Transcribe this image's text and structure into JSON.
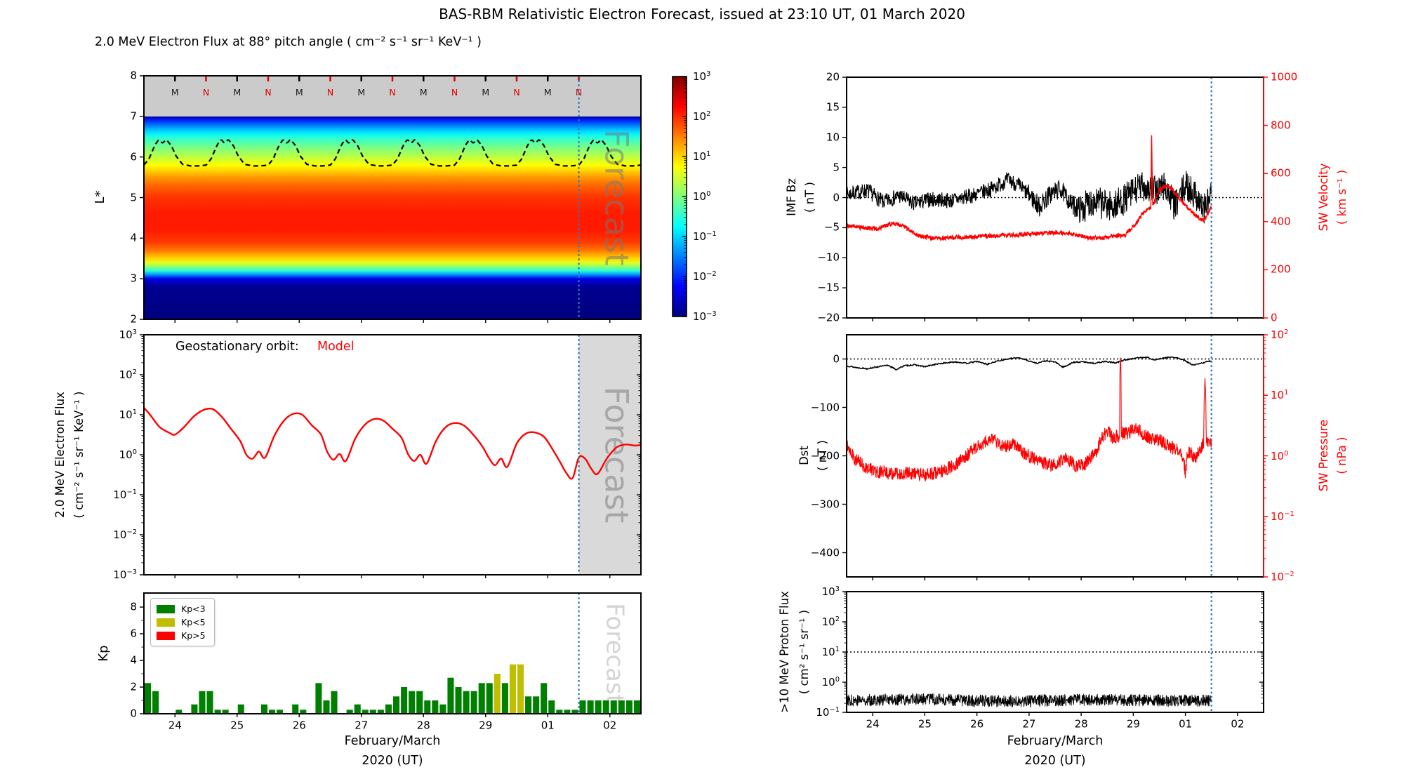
{
  "title": "BAS-RBM Relativistic Electron Forecast, issued at 23:10 UT, 01 March 2020",
  "labels": {
    "heatmap_title": "2.0 MeV Electron Flux at 88° pitch angle ( cm⁻² s⁻¹ sr⁻¹ KeV⁻¹ )",
    "lstar": "L*",
    "gf_ylabel1": "2.0 MeV Electron Flux",
    "gf_ylabel2": "( cm⁻² s⁻¹ sr⁻¹ KeV⁻¹ )",
    "kp_ylabel": "Kp",
    "imf_ylabel1": "IMF Bz",
    "imf_ylabel2": "( nT )",
    "swv_ylabel1": "SW Velocity",
    "swv_ylabel2": "( km s⁻¹ )",
    "dst_ylabel1": "Dst",
    "dst_ylabel2": "( nT )",
    "swp_ylabel1": "SW Pressure",
    "swp_ylabel2": "( nPa )",
    "proton_ylabel1": ">10 MeV Proton Flux",
    "proton_ylabel2": "( cm² s⁻¹ sr⁻¹ )",
    "xlabel_line1": "February/March",
    "xlabel_line2": "2020 (UT)",
    "geo_annotation": "Geostationary orbit:",
    "geo_annotation_model": "Model",
    "watermark": "Forecast",
    "xticks": [
      "24",
      "25",
      "26",
      "27",
      "28",
      "29",
      "01",
      "02"
    ]
  },
  "colors": {
    "red": "#ff0000",
    "forecast_line": "#3579b1",
    "forecast_shade": "#d9d9d9",
    "heatmap_gray_band": "#cbcbcb",
    "kp_green": "#008000",
    "kp_yellow": "#bfbf00",
    "kp_red": "#ff0000"
  },
  "chart_data": [
    {
      "id": "electron_flux_heatmap",
      "type": "heatmap",
      "title": "2.0 MeV Electron Flux at 88° pitch angle ( cm⁻² s⁻¹ sr⁻¹ KeV⁻¹ )",
      "ylabel": "L*",
      "yticks": [
        8,
        7,
        6,
        5,
        4,
        3,
        2
      ],
      "y_range": [
        2,
        8
      ],
      "x_range_days": 8,
      "forecast_start_day": 7,
      "gray_band_lstar": [
        7,
        8
      ],
      "colormap": "jet",
      "colorbar_exponents": [
        3,
        2,
        1,
        0,
        -1,
        -2,
        -3
      ],
      "flux_profile_log10_vs_lstar": [
        [
          7.0,
          -2.8
        ],
        [
          6.9,
          -2.0
        ],
        [
          6.7,
          -1.2
        ],
        [
          6.5,
          -0.55
        ],
        [
          6.3,
          -0.15
        ],
        [
          6.1,
          0.2
        ],
        [
          5.9,
          0.55
        ],
        [
          5.7,
          0.95
        ],
        [
          5.5,
          1.35
        ],
        [
          5.3,
          1.65
        ],
        [
          5.0,
          1.95
        ],
        [
          4.6,
          2.1
        ],
        [
          4.2,
          2.1
        ],
        [
          3.9,
          1.9
        ],
        [
          3.7,
          1.55
        ],
        [
          3.5,
          1.0
        ],
        [
          3.35,
          0.4
        ],
        [
          3.2,
          -0.5
        ],
        [
          3.1,
          -1.4
        ],
        [
          3.0,
          -2.4
        ],
        [
          2.8,
          -2.9
        ],
        [
          2.0,
          -3.0
        ]
      ],
      "geo_orbit_lstar_daily_cycle": [
        [
          0,
          5.8
        ],
        [
          0.08,
          5.95
        ],
        [
          0.18,
          6.3
        ],
        [
          0.24,
          6.43
        ],
        [
          0.3,
          6.34
        ],
        [
          0.36,
          6.43
        ],
        [
          0.44,
          6.28
        ],
        [
          0.52,
          6.02
        ],
        [
          0.62,
          5.82
        ],
        [
          0.75,
          5.78
        ],
        [
          0.88,
          5.78
        ],
        [
          1,
          5.8
        ]
      ],
      "midnight_noon_markers": [
        {
          "day": 0.5,
          "label": "M"
        },
        {
          "day": 1.0,
          "label": "N"
        },
        {
          "day": 1.5,
          "label": "M"
        },
        {
          "day": 2.0,
          "label": "N"
        },
        {
          "day": 2.5,
          "label": "M"
        },
        {
          "day": 3.0,
          "label": "N"
        },
        {
          "day": 3.5,
          "label": "M"
        },
        {
          "day": 4.0,
          "label": "N"
        },
        {
          "day": 4.5,
          "label": "M"
        },
        {
          "day": 5.0,
          "label": "N"
        },
        {
          "day": 5.5,
          "label": "M"
        },
        {
          "day": 6.0,
          "label": "N"
        },
        {
          "day": 6.5,
          "label": "M"
        },
        {
          "day": 7.0,
          "label": "N"
        }
      ]
    },
    {
      "id": "geostationary_flux",
      "type": "line",
      "annotation": "Geostationary orbit:",
      "series_name": "Model",
      "ylog_exponents": [
        3,
        2,
        1,
        0,
        -1,
        -2,
        -3
      ],
      "forecast_start_day": 7,
      "points_day_flux": [
        [
          0,
          15
        ],
        [
          0.1,
          10
        ],
        [
          0.25,
          5
        ],
        [
          0.4,
          3.6
        ],
        [
          0.5,
          3.2
        ],
        [
          0.65,
          5
        ],
        [
          0.8,
          9
        ],
        [
          0.95,
          13
        ],
        [
          1.1,
          14
        ],
        [
          1.25,
          9
        ],
        [
          1.4,
          4.5
        ],
        [
          1.55,
          2.2
        ],
        [
          1.65,
          1.0
        ],
        [
          1.75,
          0.8
        ],
        [
          1.85,
          1.2
        ],
        [
          1.95,
          0.85
        ],
        [
          2.1,
          3
        ],
        [
          2.25,
          7
        ],
        [
          2.4,
          10.5
        ],
        [
          2.55,
          10
        ],
        [
          2.7,
          5.5
        ],
        [
          2.85,
          3.2
        ],
        [
          2.95,
          1.2
        ],
        [
          3.05,
          0.75
        ],
        [
          3.15,
          1.05
        ],
        [
          3.25,
          0.7
        ],
        [
          3.4,
          2.5
        ],
        [
          3.55,
          5.5
        ],
        [
          3.7,
          7.8
        ],
        [
          3.85,
          7.2
        ],
        [
          4.0,
          4.5
        ],
        [
          4.15,
          2.6
        ],
        [
          4.25,
          1.05
        ],
        [
          4.35,
          0.7
        ],
        [
          4.45,
          1.0
        ],
        [
          4.55,
          0.6
        ],
        [
          4.7,
          2.2
        ],
        [
          4.85,
          4.8
        ],
        [
          5.0,
          6.2
        ],
        [
          5.15,
          5.4
        ],
        [
          5.3,
          3.2
        ],
        [
          5.45,
          1.6
        ],
        [
          5.55,
          0.85
        ],
        [
          5.65,
          0.55
        ],
        [
          5.75,
          0.8
        ],
        [
          5.85,
          0.5
        ],
        [
          6.0,
          1.9
        ],
        [
          6.15,
          3.4
        ],
        [
          6.3,
          3.6
        ],
        [
          6.45,
          2.7
        ],
        [
          6.6,
          1.2
        ],
        [
          6.7,
          0.65
        ],
        [
          6.8,
          0.35
        ],
        [
          6.9,
          0.26
        ],
        [
          7.0,
          0.85
        ],
        [
          7.1,
          0.8
        ],
        [
          7.2,
          0.45
        ],
        [
          7.3,
          0.33
        ],
        [
          7.45,
          0.8
        ],
        [
          7.6,
          1.5
        ],
        [
          7.75,
          1.8
        ],
        [
          7.9,
          1.7
        ],
        [
          8,
          1.75
        ]
      ]
    },
    {
      "id": "kp_index",
      "type": "bar",
      "ylabel": "Kp",
      "yticks": [
        0,
        2,
        4,
        6,
        8
      ],
      "bin_hours": 3,
      "forecast_start_day": 7,
      "legend": [
        {
          "label": "Kp<3",
          "color": "#008000"
        },
        {
          "label": "Kp<5",
          "color": "#bfbf00"
        },
        {
          "label": "Kp>5",
          "color": "#ff0000"
        }
      ],
      "values": [
        2.3,
        1.7,
        0,
        0,
        0.3,
        0,
        0.7,
        1.7,
        1.7,
        0.3,
        0.3,
        0,
        0.7,
        0,
        0,
        0.7,
        0.3,
        0.3,
        0,
        0.7,
        0.3,
        0,
        2.3,
        1.0,
        1.7,
        0,
        0.3,
        0.7,
        0.3,
        0.3,
        0.3,
        0.7,
        1.3,
        2.0,
        1.7,
        1.7,
        1.0,
        1.0,
        0.7,
        2.7,
        2.0,
        1.7,
        1.7,
        2.3,
        2.3,
        3.0,
        2.3,
        3.7,
        3.7,
        1.3,
        1.3,
        2.3,
        1.0,
        0.3,
        0.3,
        0.3,
        1.0,
        1.0,
        1.0,
        1.0,
        1.0,
        1.0,
        1.0,
        1.0
      ]
    },
    {
      "id": "imf_sw_velocity",
      "type": "line",
      "left_axis": {
        "label": "IMF Bz ( nT )",
        "range": [
          -20,
          20
        ],
        "ticks": [
          20,
          15,
          10,
          5,
          0,
          -5,
          -10,
          -15,
          -20
        ]
      },
      "right_axis": {
        "label": "SW Velocity ( km s⁻¹ )",
        "range": [
          0,
          1000
        ],
        "ticks": [
          1000,
          800,
          600,
          400,
          200,
          0
        ]
      },
      "zero_line_bz": 0,
      "data_end_day": 7,
      "imf_bz_keypoints": [
        [
          0,
          0.5
        ],
        [
          0.4,
          1.2
        ],
        [
          0.7,
          -0.8
        ],
        [
          1.0,
          0.3
        ],
        [
          1.3,
          -1
        ],
        [
          1.6,
          -0.3
        ],
        [
          2.0,
          -0.5
        ],
        [
          2.4,
          0.3
        ],
        [
          2.8,
          1.5
        ],
        [
          3.1,
          3
        ],
        [
          3.3,
          2
        ],
        [
          3.5,
          0.5
        ],
        [
          3.7,
          -1.5
        ],
        [
          3.9,
          0.5
        ],
        [
          4.1,
          1.5
        ],
        [
          4.3,
          -1
        ],
        [
          4.5,
          -2
        ],
        [
          4.7,
          -0.5
        ],
        [
          4.9,
          -1
        ],
        [
          5.1,
          -1.5
        ],
        [
          5.3,
          -0.5
        ],
        [
          5.5,
          1
        ],
        [
          5.7,
          2
        ],
        [
          5.9,
          1
        ],
        [
          6.1,
          2
        ],
        [
          6.3,
          -1.5
        ],
        [
          6.5,
          2
        ],
        [
          6.7,
          0.5
        ],
        [
          6.85,
          -2
        ],
        [
          7.0,
          0.5
        ]
      ],
      "imf_bz_noise_amp": [
        [
          0,
          1.3
        ],
        [
          3.4,
          1.3
        ],
        [
          3.6,
          1.8
        ],
        [
          4.3,
          1.5
        ],
        [
          4.55,
          2.6
        ],
        [
          7,
          2.6
        ]
      ],
      "sw_velocity_keypoints": [
        [
          0,
          385
        ],
        [
          0.3,
          375
        ],
        [
          0.6,
          370
        ],
        [
          0.9,
          395
        ],
        [
          1.1,
          380
        ],
        [
          1.4,
          340
        ],
        [
          1.7,
          330
        ],
        [
          2.2,
          335
        ],
        [
          2.7,
          340
        ],
        [
          3.2,
          345
        ],
        [
          3.7,
          350
        ],
        [
          4.0,
          355
        ],
        [
          4.3,
          350
        ],
        [
          4.6,
          335
        ],
        [
          4.9,
          330
        ],
        [
          5.1,
          340
        ],
        [
          5.35,
          345
        ],
        [
          5.55,
          390
        ],
        [
          5.7,
          440
        ],
        [
          5.84,
          460
        ],
        [
          5.85,
          790
        ],
        [
          5.87,
          470
        ],
        [
          6.0,
          530
        ],
        [
          6.15,
          555
        ],
        [
          6.3,
          520
        ],
        [
          6.45,
          480
        ],
        [
          6.6,
          445
        ],
        [
          6.75,
          415
        ],
        [
          6.85,
          405
        ],
        [
          6.95,
          440
        ],
        [
          7.0,
          465
        ]
      ],
      "sw_velocity_noise_amp": 9
    },
    {
      "id": "dst_sw_pressure",
      "type": "line",
      "left_axis": {
        "label": "Dst ( nT )",
        "range": [
          -450,
          50
        ],
        "ticks": [
          0,
          -100,
          -200,
          -300,
          -400
        ]
      },
      "right_axis": {
        "label": "SW Pressure ( nPa )",
        "log_exponents": [
          2,
          1,
          0,
          -1,
          -2
        ]
      },
      "zero_line_dst": 0,
      "data_end_day": 7,
      "dst_keypoints": [
        [
          0,
          -14
        ],
        [
          0.2,
          -18
        ],
        [
          0.4,
          -20
        ],
        [
          0.6,
          -16
        ],
        [
          0.8,
          -13
        ],
        [
          0.95,
          -22
        ],
        [
          1.1,
          -14
        ],
        [
          1.3,
          -12
        ],
        [
          1.5,
          -16
        ],
        [
          1.7,
          -11
        ],
        [
          1.9,
          -8
        ],
        [
          2.1,
          -6
        ],
        [
          2.3,
          -9
        ],
        [
          2.5,
          -5
        ],
        [
          2.7,
          -11
        ],
        [
          2.9,
          -4
        ],
        [
          3.1,
          0
        ],
        [
          3.3,
          3
        ],
        [
          3.5,
          -4
        ],
        [
          3.65,
          -9
        ],
        [
          3.8,
          -4
        ],
        [
          4.0,
          -6
        ],
        [
          4.15,
          -17
        ],
        [
          4.35,
          -7
        ],
        [
          4.55,
          -6
        ],
        [
          4.75,
          -9
        ],
        [
          4.95,
          -5
        ],
        [
          5.15,
          -8
        ],
        [
          5.35,
          -2
        ],
        [
          5.55,
          2
        ],
        [
          5.75,
          4
        ],
        [
          5.9,
          -2
        ],
        [
          6.05,
          1
        ],
        [
          6.2,
          4
        ],
        [
          6.35,
          2
        ],
        [
          6.5,
          -4
        ],
        [
          6.65,
          -13
        ],
        [
          6.8,
          -9
        ],
        [
          6.9,
          -6
        ],
        [
          7.0,
          -4
        ]
      ],
      "dst_noise_amp": 1.2,
      "pressure_keypoints_npa": [
        [
          0,
          1.6
        ],
        [
          0.15,
          0.9
        ],
        [
          0.35,
          0.65
        ],
        [
          0.6,
          0.55
        ],
        [
          0.9,
          0.5
        ],
        [
          1.2,
          0.52
        ],
        [
          1.5,
          0.48
        ],
        [
          1.8,
          0.55
        ],
        [
          2.1,
          0.7
        ],
        [
          2.35,
          1.1
        ],
        [
          2.6,
          1.6
        ],
        [
          2.8,
          1.9
        ],
        [
          3.0,
          1.4
        ],
        [
          3.2,
          1.6
        ],
        [
          3.4,
          1.1
        ],
        [
          3.6,
          0.9
        ],
        [
          3.8,
          0.75
        ],
        [
          4.0,
          0.7
        ],
        [
          4.2,
          0.95
        ],
        [
          4.4,
          0.65
        ],
        [
          4.6,
          0.75
        ],
        [
          4.8,
          1.2
        ],
        [
          5.0,
          2.6
        ],
        [
          5.1,
          2.0
        ],
        [
          5.24,
          2.2
        ],
        [
          5.25,
          50
        ],
        [
          5.27,
          2.4
        ],
        [
          5.4,
          2.3
        ],
        [
          5.55,
          3.0
        ],
        [
          5.7,
          2.2
        ],
        [
          5.85,
          1.9
        ],
        [
          6.0,
          1.8
        ],
        [
          6.15,
          1.5
        ],
        [
          6.3,
          1.3
        ],
        [
          6.45,
          1.0
        ],
        [
          6.5,
          0.5
        ],
        [
          6.55,
          1.2
        ],
        [
          6.7,
          0.9
        ],
        [
          6.85,
          1.6
        ],
        [
          6.88,
          17
        ],
        [
          6.9,
          1.8
        ],
        [
          7.0,
          1.5
        ]
      ],
      "pressure_log_noise": 0.11
    },
    {
      "id": "proton_flux",
      "type": "line",
      "ylabel": ">10 MeV Proton Flux ( cm² s⁻¹ sr⁻¹ )",
      "ylog_exponents": [
        3,
        2,
        1,
        0,
        -1
      ],
      "threshold_line": 10,
      "data_end_day": 7,
      "mean_keypoints": [
        [
          0,
          0.25
        ],
        [
          1.5,
          0.27
        ],
        [
          3,
          0.23
        ],
        [
          4.5,
          0.26
        ],
        [
          6,
          0.25
        ],
        [
          7,
          0.24
        ]
      ],
      "log_noise": 0.2
    }
  ]
}
